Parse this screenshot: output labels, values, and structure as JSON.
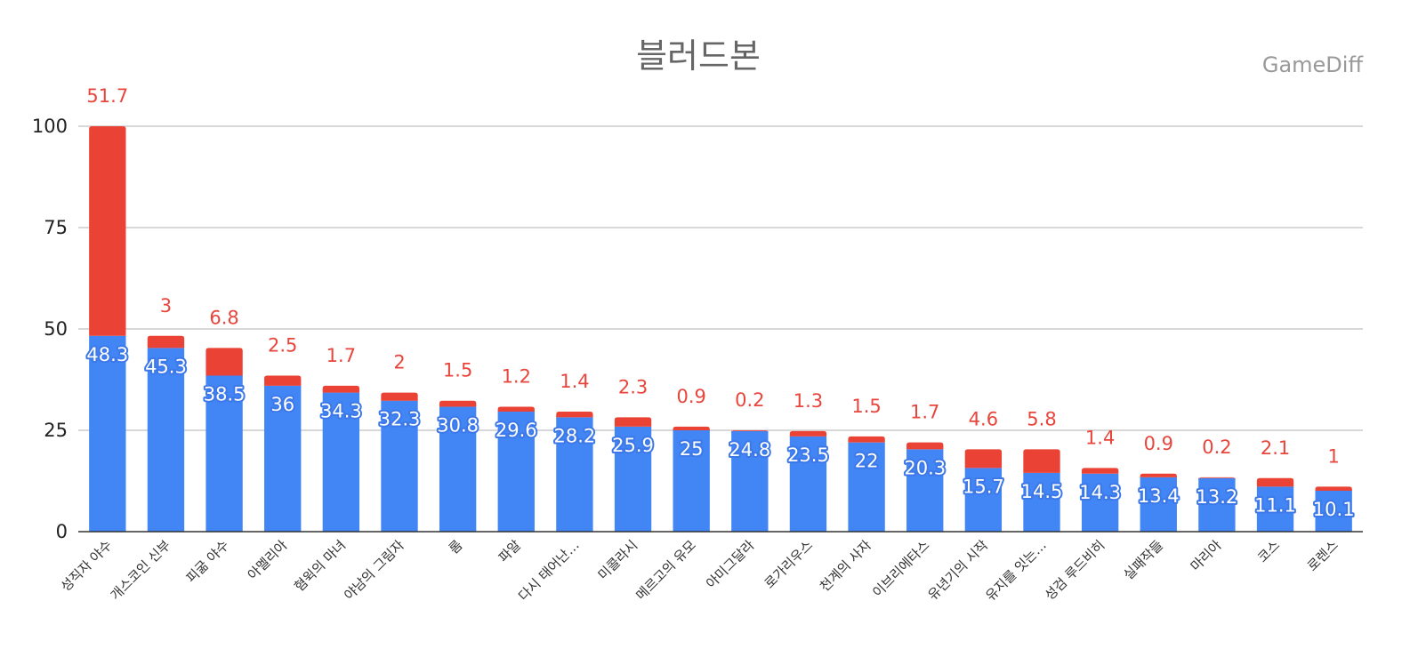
{
  "chart_data": {
    "type": "bar",
    "stacked": true,
    "title": "블러드본",
    "watermark": "GameDiff",
    "categories": [
      "성직자 야수",
      "개스코인 신부",
      "피굶 야수",
      "아멜리아",
      "혐윅의 마녀",
      "야남의 그림자",
      "롬",
      "파알",
      "다시 태어난…",
      "미콜라시",
      "메르고의 유모",
      "아미그달라",
      "로가리우스",
      "천계의 사자",
      "이브리에타스",
      "유년기의 시작",
      "유지를 잇는…",
      "성검 루드비히",
      "실패작들",
      "마리아",
      "코스",
      "로렌스"
    ],
    "series": [
      {
        "name": "bottom",
        "color": "#4285f4",
        "values": [
          48.3,
          45.3,
          38.5,
          36,
          34.3,
          32.3,
          30.8,
          29.6,
          28.2,
          25.9,
          25,
          24.8,
          23.5,
          22,
          20.3,
          15.7,
          14.5,
          14.3,
          13.4,
          13.2,
          11.1,
          10.1
        ]
      },
      {
        "name": "top",
        "color": "#ea4335",
        "values": [
          51.7,
          3,
          6.8,
          2.5,
          1.7,
          2,
          1.5,
          1.2,
          1.4,
          2.3,
          0.9,
          0.2,
          1.3,
          1.5,
          1.7,
          4.6,
          5.8,
          1.4,
          0.9,
          0.2,
          2.1,
          1
        ]
      }
    ],
    "ylim": [
      0,
      100
    ],
    "yticks": [
      0,
      25,
      50,
      75,
      100
    ],
    "grid": true,
    "xlabel": "",
    "ylabel": ""
  }
}
